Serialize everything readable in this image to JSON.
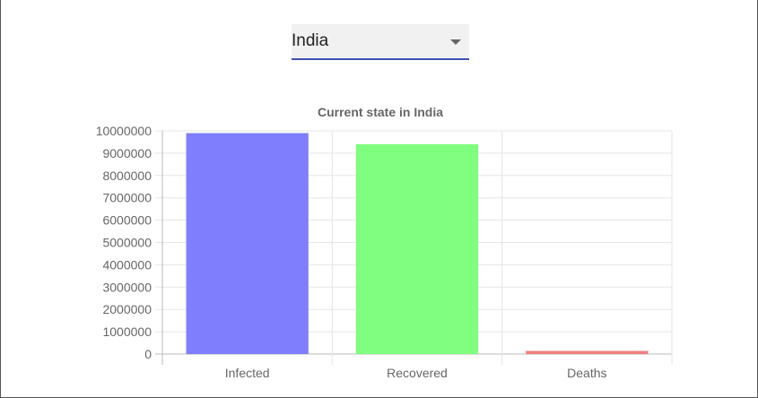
{
  "country_select": {
    "value": "India"
  },
  "chart_data": {
    "type": "bar",
    "title": "Current state in India",
    "categories": [
      "Infected",
      "Recovered",
      "Deaths"
    ],
    "values": [
      9900000,
      9400000,
      143000
    ],
    "colors": [
      "#7f7ffe",
      "#7ffe7f",
      "#f08080"
    ],
    "ylim": [
      0,
      10000000
    ],
    "yticks": [
      "10000000",
      "9000000",
      "8000000",
      "7000000",
      "6000000",
      "5000000",
      "4000000",
      "3000000",
      "2000000",
      "1000000",
      "0"
    ],
    "xlabel": "",
    "ylabel": "",
    "grid": true
  }
}
